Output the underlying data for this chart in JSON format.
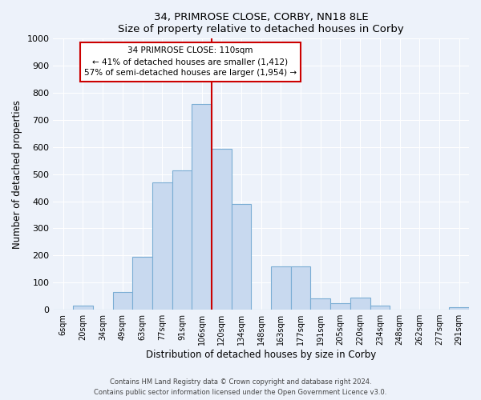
{
  "title": "34, PRIMROSE CLOSE, CORBY, NN18 8LE",
  "subtitle": "Size of property relative to detached houses in Corby",
  "xlabel": "Distribution of detached houses by size in Corby",
  "ylabel": "Number of detached properties",
  "bar_labels": [
    "6sqm",
    "20sqm",
    "34sqm",
    "49sqm",
    "63sqm",
    "77sqm",
    "91sqm",
    "106sqm",
    "120sqm",
    "134sqm",
    "148sqm",
    "163sqm",
    "177sqm",
    "191sqm",
    "205sqm",
    "220sqm",
    "234sqm",
    "248sqm",
    "262sqm",
    "277sqm",
    "291sqm"
  ],
  "bar_heights": [
    0,
    15,
    0,
    65,
    195,
    470,
    515,
    760,
    595,
    390,
    0,
    160,
    160,
    42,
    25,
    45,
    15,
    0,
    0,
    0,
    10
  ],
  "bar_color": "#c8d9ef",
  "bar_edge_color": "#7aadd4",
  "vline_x_idx": 7,
  "vline_color": "#cc0000",
  "annotation_title": "34 PRIMROSE CLOSE: 110sqm",
  "annotation_line1": "← 41% of detached houses are smaller (1,412)",
  "annotation_line2": "57% of semi-detached houses are larger (1,954) →",
  "annotation_box_color": "#ffffff",
  "annotation_box_edge": "#cc0000",
  "ylim": [
    0,
    1000
  ],
  "yticks": [
    0,
    100,
    200,
    300,
    400,
    500,
    600,
    700,
    800,
    900,
    1000
  ],
  "footer1": "Contains HM Land Registry data © Crown copyright and database right 2024.",
  "footer2": "Contains public sector information licensed under the Open Government Licence v3.0.",
  "bg_color": "#edf2fa"
}
